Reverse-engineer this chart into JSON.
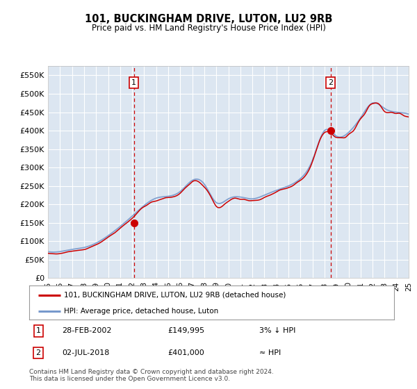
{
  "title": "101, BUCKINGHAM DRIVE, LUTON, LU2 9RB",
  "subtitle": "Price paid vs. HM Land Registry's House Price Index (HPI)",
  "background_color": "#dce6f1",
  "plot_bg_color": "#dce6f1",
  "ylabel_ticks": [
    "£0",
    "£50K",
    "£100K",
    "£150K",
    "£200K",
    "£250K",
    "£300K",
    "£350K",
    "£400K",
    "£450K",
    "£500K",
    "£550K"
  ],
  "ytick_values": [
    0,
    50000,
    100000,
    150000,
    200000,
    250000,
    300000,
    350000,
    400000,
    450000,
    500000,
    550000
  ],
  "x_start_year": 1995,
  "x_end_year": 2025,
  "sale1_year": 2002.15,
  "sale1_price": 149995,
  "sale2_year": 2018.5,
  "sale2_price": 401000,
  "legend_entry1": "101, BUCKINGHAM DRIVE, LUTON, LU2 9RB (detached house)",
  "legend_entry2": "HPI: Average price, detached house, Luton",
  "annotation1_date": "28-FEB-2002",
  "annotation1_price": "£149,995",
  "annotation1_hpi": "3% ↓ HPI",
  "annotation2_date": "02-JUL-2018",
  "annotation2_price": "£401,000",
  "annotation2_hpi": "≈ HPI",
  "footer": "Contains HM Land Registry data © Crown copyright and database right 2024.\nThis data is licensed under the Open Government Licence v3.0.",
  "line_color_red": "#cc0000",
  "line_color_blue": "#7799cc",
  "dashed_line_color": "#cc0000",
  "hpi_data_years": [
    1995,
    1996,
    1997,
    1998,
    1999,
    2000,
    2001,
    2002,
    2003,
    2004,
    2005,
    2006,
    2007,
    2008,
    2009,
    2010,
    2011,
    2012,
    2013,
    2014,
    2015,
    2016,
    2017,
    2018,
    2019,
    2020,
    2021,
    2022,
    2023,
    2024,
    2025
  ],
  "hpi_data_values": [
    72000,
    72000,
    78000,
    83000,
    95000,
    115000,
    140000,
    168000,
    197000,
    217000,
    222000,
    235000,
    265000,
    255000,
    205000,
    215000,
    220000,
    215000,
    225000,
    238000,
    250000,
    270000,
    320000,
    400000,
    385000,
    395000,
    435000,
    475000,
    460000,
    450000,
    445000
  ]
}
